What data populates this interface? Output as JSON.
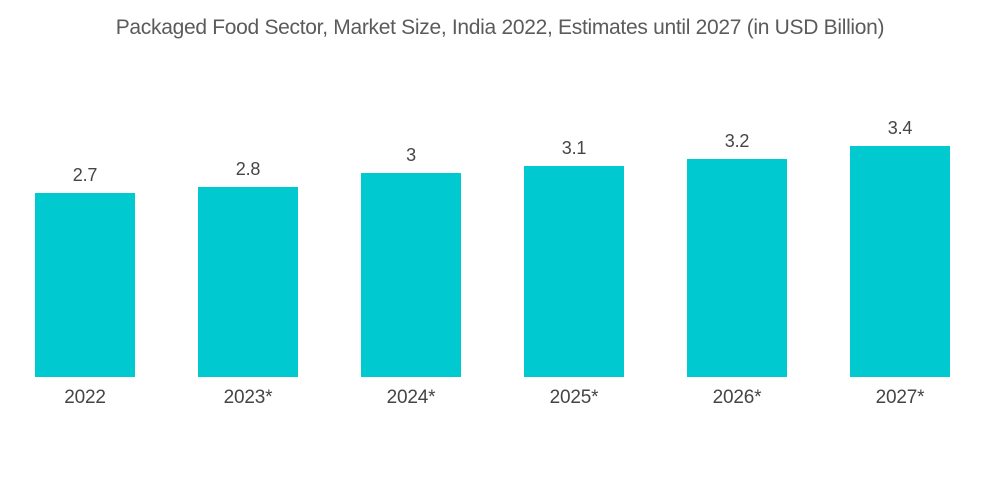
{
  "chart_data": {
    "type": "bar",
    "title": "Packaged Food Sector, Market Size, India 2022, Estimates until 2027 (in USD Billion)",
    "categories": [
      "2022",
      "2023*",
      "2024*",
      "2025*",
      "2026*",
      "2027*"
    ],
    "values": [
      2.7,
      2.8,
      3,
      3.1,
      3.2,
      3.4
    ],
    "value_labels": [
      "2.7",
      "2.8",
      "3",
      "3.1",
      "3.2",
      "3.4"
    ],
    "ylabel": "",
    "xlabel": "",
    "ylim": [
      0,
      3.4
    ],
    "grid": false,
    "legend": "none",
    "data_labels_position": "above bars",
    "colors": {
      "bar": "#00C9CF",
      "title_text": "#5B5B5B",
      "label_text": "#454545",
      "background": "#FFFFFF"
    }
  }
}
